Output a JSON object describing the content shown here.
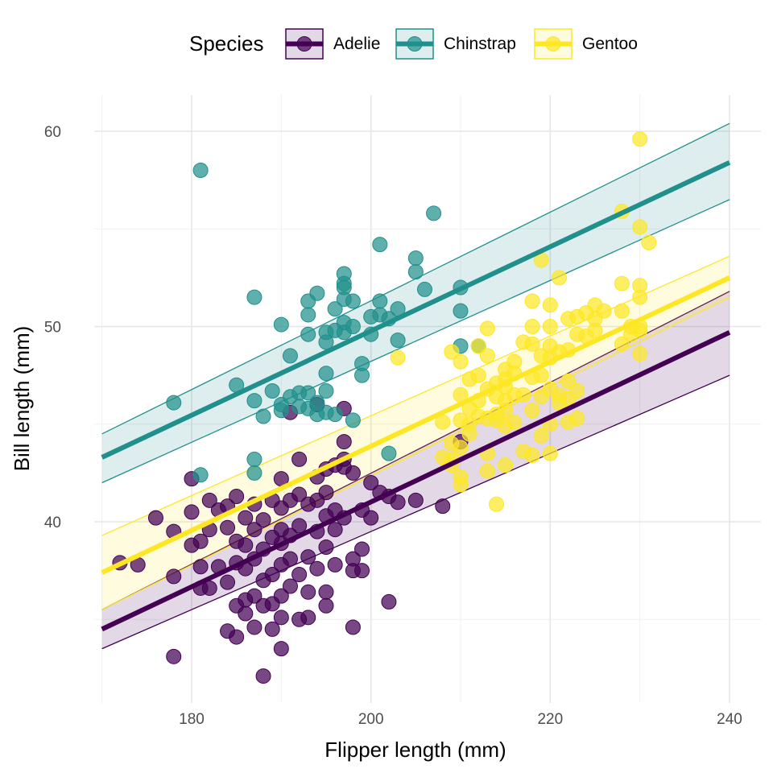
{
  "chart_data": {
    "type": "scatter",
    "xlabel": "Flipper length (mm)",
    "ylabel": "Bill length (mm)",
    "xlim": [
      170,
      240
    ],
    "ylim": [
      31,
      62
    ],
    "x_ticks": [
      180,
      200,
      220,
      240
    ],
    "y_ticks": [
      40,
      50,
      60
    ],
    "x_minor_ticks": [
      170,
      190,
      210,
      230
    ],
    "y_minor_ticks": [
      35,
      45,
      55
    ],
    "grid": true,
    "legend": {
      "title": "Species",
      "position": "top"
    },
    "series": [
      {
        "name": "Adelie",
        "color": "#440154",
        "fit": {
          "x": [
            170,
            240
          ],
          "y": [
            34.5,
            49.7
          ],
          "lower": [
            33.5,
            47.5
          ],
          "upper": [
            35.5,
            51.8
          ]
        },
        "points": [
          [
            172,
            37.9
          ],
          [
            174,
            37.8
          ],
          [
            176,
            40.2
          ],
          [
            178,
            39.5
          ],
          [
            178,
            37.2
          ],
          [
            178,
            33.1
          ],
          [
            180,
            42.2
          ],
          [
            180,
            40.5
          ],
          [
            180,
            38.8
          ],
          [
            181,
            37.7
          ],
          [
            181,
            39.0
          ],
          [
            181,
            36.6
          ],
          [
            182,
            41.1
          ],
          [
            182,
            39.6
          ],
          [
            182,
            36.6
          ],
          [
            183,
            40.6
          ],
          [
            183,
            37.7
          ],
          [
            184,
            40.8
          ],
          [
            184,
            39.7
          ],
          [
            184,
            36.9
          ],
          [
            184,
            34.4
          ],
          [
            185,
            41.3
          ],
          [
            185,
            39.0
          ],
          [
            185,
            37.9
          ],
          [
            185,
            35.7
          ],
          [
            185,
            34.1
          ],
          [
            186,
            40.2
          ],
          [
            186,
            38.8
          ],
          [
            186,
            37.6
          ],
          [
            186,
            36.0
          ],
          [
            186,
            35.3
          ],
          [
            187,
            39.6
          ],
          [
            187,
            38.1
          ],
          [
            187,
            36.2
          ],
          [
            187,
            34.6
          ],
          [
            187,
            40.9
          ],
          [
            188,
            40.1
          ],
          [
            188,
            38.6
          ],
          [
            188,
            37.0
          ],
          [
            188,
            35.7
          ],
          [
            188,
            32.1
          ],
          [
            189,
            41.1
          ],
          [
            189,
            39.2
          ],
          [
            189,
            37.3
          ],
          [
            189,
            35.8
          ],
          [
            189,
            34.5
          ],
          [
            190,
            42.2
          ],
          [
            190,
            40.7
          ],
          [
            190,
            39.6
          ],
          [
            190,
            38.9
          ],
          [
            190,
            37.8
          ],
          [
            190,
            36.2
          ],
          [
            190,
            35.1
          ],
          [
            190,
            33.5
          ],
          [
            191,
            41.1
          ],
          [
            191,
            39.3
          ],
          [
            191,
            38.1
          ],
          [
            191,
            36.7
          ],
          [
            191,
            45.6
          ],
          [
            192,
            43.2
          ],
          [
            192,
            41.4
          ],
          [
            192,
            39.8
          ],
          [
            192,
            37.3
          ],
          [
            192,
            35.0
          ],
          [
            193,
            40.9
          ],
          [
            193,
            38.2
          ],
          [
            193,
            36.4
          ],
          [
            193,
            35.1
          ],
          [
            194,
            42.3
          ],
          [
            194,
            41.1
          ],
          [
            194,
            39.5
          ],
          [
            194,
            37.6
          ],
          [
            194,
            46.0
          ],
          [
            195,
            42.7
          ],
          [
            195,
            41.5
          ],
          [
            195,
            40.3
          ],
          [
            195,
            38.7
          ],
          [
            195,
            36.4
          ],
          [
            195,
            35.7
          ],
          [
            196,
            42.9
          ],
          [
            196,
            40.6
          ],
          [
            196,
            39.6
          ],
          [
            196,
            37.8
          ],
          [
            197,
            44.1
          ],
          [
            197,
            42.8
          ],
          [
            197,
            40.2
          ],
          [
            197,
            45.8
          ],
          [
            197,
            43.2
          ],
          [
            198,
            42.5
          ],
          [
            198,
            38.1
          ],
          [
            198,
            37.5
          ],
          [
            198,
            34.6
          ],
          [
            199,
            40.6
          ],
          [
            199,
            38.6
          ],
          [
            199,
            37.5
          ],
          [
            200,
            42.0
          ],
          [
            200,
            40.2
          ],
          [
            201,
            41.5
          ],
          [
            202,
            41.3
          ],
          [
            202,
            35.9
          ],
          [
            203,
            41.0
          ],
          [
            205,
            41.1
          ],
          [
            208,
            40.8
          ],
          [
            210,
            44.1
          ]
        ]
      },
      {
        "name": "Chinstrap",
        "color": "#21908C",
        "fit": {
          "x": [
            170,
            240
          ],
          "y": [
            43.3,
            58.4
          ],
          "lower": [
            42.0,
            56.5
          ],
          "upper": [
            44.5,
            60.4
          ]
        },
        "points": [
          [
            178,
            46.1
          ],
          [
            181,
            58.0
          ],
          [
            181,
            42.4
          ],
          [
            185,
            47.0
          ],
          [
            187,
            51.5
          ],
          [
            187,
            46.2
          ],
          [
            187,
            43.2
          ],
          [
            187,
            42.5
          ],
          [
            188,
            45.4
          ],
          [
            189,
            46.7
          ],
          [
            190,
            50.1
          ],
          [
            190,
            46.0
          ],
          [
            190,
            45.7
          ],
          [
            191,
            48.5
          ],
          [
            191,
            46.4
          ],
          [
            192,
            45.9
          ],
          [
            192,
            46.6
          ],
          [
            193,
            51.3
          ],
          [
            193,
            50.6
          ],
          [
            193,
            49.6
          ],
          [
            193,
            46.6
          ],
          [
            193,
            45.8
          ],
          [
            194,
            51.7
          ],
          [
            194,
            46.1
          ],
          [
            194,
            45.5
          ],
          [
            195,
            49.7
          ],
          [
            195,
            49.2
          ],
          [
            195,
            47.6
          ],
          [
            195,
            46.7
          ],
          [
            195,
            45.6
          ],
          [
            196,
            50.9
          ],
          [
            196,
            49.8
          ],
          [
            196,
            45.5
          ],
          [
            197,
            52.7
          ],
          [
            197,
            52.0
          ],
          [
            197,
            51.4
          ],
          [
            197,
            50.2
          ],
          [
            197,
            49.7
          ],
          [
            197,
            52.2
          ],
          [
            198,
            51.3
          ],
          [
            198,
            50.0
          ],
          [
            198,
            45.2
          ],
          [
            199,
            48.1
          ],
          [
            199,
            47.5
          ],
          [
            200,
            50.5
          ],
          [
            200,
            49.6
          ],
          [
            201,
            54.2
          ],
          [
            201,
            51.3
          ],
          [
            201,
            50.6
          ],
          [
            202,
            50.4
          ],
          [
            202,
            43.5
          ],
          [
            203,
            50.9
          ],
          [
            203,
            49.3
          ],
          [
            205,
            53.5
          ],
          [
            205,
            52.8
          ],
          [
            206,
            51.9
          ],
          [
            207,
            55.8
          ],
          [
            210,
            52.0
          ],
          [
            210,
            50.8
          ],
          [
            210,
            49.0
          ],
          [
            212,
            49.0
          ]
        ]
      },
      {
        "name": "Gentoo",
        "color": "#FDE725",
        "fit": {
          "x": [
            170,
            240
          ],
          "y": [
            37.4,
            52.5
          ],
          "lower": [
            35.5,
            51.5
          ],
          "upper": [
            39.3,
            53.6
          ]
        },
        "points": [
          [
            203,
            48.4
          ],
          [
            208,
            45.1
          ],
          [
            208,
            43.3
          ],
          [
            209,
            48.7
          ],
          [
            209,
            44.0
          ],
          [
            209,
            43.2
          ],
          [
            209,
            42.9
          ],
          [
            210,
            48.2
          ],
          [
            210,
            46.5
          ],
          [
            210,
            45.2
          ],
          [
            210,
            43.8
          ],
          [
            210,
            41.9
          ],
          [
            210,
            42.3
          ],
          [
            211,
            47.3
          ],
          [
            211,
            45.8
          ],
          [
            211,
            45.0
          ],
          [
            211,
            44.5
          ],
          [
            212,
            47.5
          ],
          [
            212,
            46.2
          ],
          [
            212,
            45.4
          ],
          [
            212,
            49.0
          ],
          [
            213,
            49.9
          ],
          [
            213,
            48.5
          ],
          [
            213,
            46.8
          ],
          [
            213,
            45.3
          ],
          [
            213,
            43.5
          ],
          [
            213,
            42.6
          ],
          [
            214,
            47.1
          ],
          [
            214,
            46.4
          ],
          [
            214,
            45.5
          ],
          [
            214,
            45.2
          ],
          [
            214,
            40.9
          ],
          [
            215,
            47.8
          ],
          [
            215,
            47.3
          ],
          [
            215,
            46.9
          ],
          [
            215,
            46.2
          ],
          [
            215,
            45.7
          ],
          [
            215,
            44.9
          ],
          [
            215,
            42.9
          ],
          [
            216,
            48.2
          ],
          [
            216,
            47.6
          ],
          [
            216,
            46.5
          ],
          [
            216,
            45.1
          ],
          [
            217,
            49.2
          ],
          [
            217,
            46.5
          ],
          [
            217,
            43.6
          ],
          [
            218,
            51.3
          ],
          [
            218,
            50.0
          ],
          [
            218,
            49.1
          ],
          [
            218,
            47.4
          ],
          [
            218,
            45.7
          ],
          [
            218,
            43.4
          ],
          [
            219,
            53.4
          ],
          [
            219,
            48.5
          ],
          [
            219,
            47.5
          ],
          [
            219,
            46.4
          ],
          [
            219,
            44.4
          ],
          [
            220,
            51.1
          ],
          [
            220,
            50.0
          ],
          [
            220,
            49.0
          ],
          [
            220,
            48.4
          ],
          [
            220,
            46.8
          ],
          [
            220,
            45.0
          ],
          [
            220,
            43.5
          ],
          [
            221,
            52.5
          ],
          [
            221,
            48.7
          ],
          [
            221,
            46.5
          ],
          [
            221,
            46.1
          ],
          [
            222,
            50.4
          ],
          [
            222,
            48.8
          ],
          [
            222,
            47.2
          ],
          [
            222,
            46.3
          ],
          [
            222,
            45.1
          ],
          [
            223,
            50.5
          ],
          [
            223,
            49.6
          ],
          [
            223,
            46.7
          ],
          [
            223,
            45.3
          ],
          [
            224,
            50.7
          ],
          [
            224,
            49.5
          ],
          [
            225,
            51.1
          ],
          [
            225,
            50.4
          ],
          [
            225,
            49.8
          ],
          [
            226,
            50.8
          ],
          [
            228,
            55.9
          ],
          [
            228,
            52.2
          ],
          [
            228,
            50.8
          ],
          [
            228,
            49.1
          ],
          [
            229,
            50.0
          ],
          [
            229,
            49.6
          ],
          [
            230,
            59.6
          ],
          [
            230,
            55.1
          ],
          [
            230,
            52.1
          ],
          [
            230,
            51.5
          ],
          [
            230,
            50.0
          ],
          [
            230,
            49.8
          ],
          [
            230,
            48.6
          ],
          [
            231,
            54.3
          ]
        ]
      }
    ]
  }
}
